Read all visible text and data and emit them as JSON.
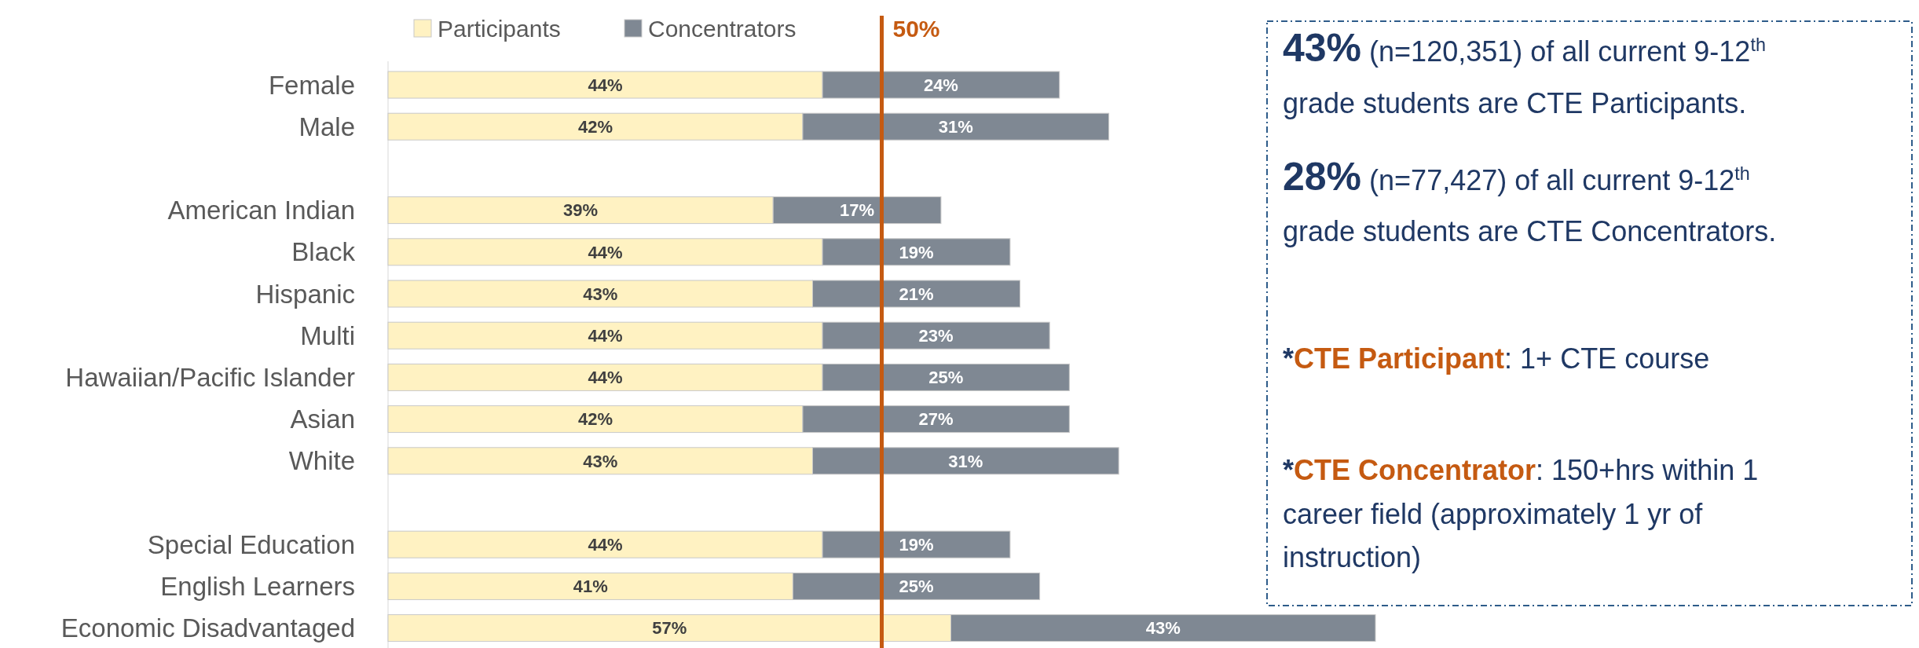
{
  "chart_data": [
    {
      "type": "bar",
      "orientation": "horizontal",
      "stacked": true,
      "legend": "top",
      "categories": [
        "Female",
        "Male",
        null,
        "American Indian",
        "Black",
        "Hispanic",
        "Multi",
        "Hawaiian/Pacific Islander",
        "Asian",
        "White",
        null,
        "Special Education",
        "English Learners",
        "Economic Disadvantaged"
      ],
      "series": [
        {
          "name": "Participants",
          "color": "#fff2c2",
          "values": [
            44,
            42,
            null,
            39,
            44,
            43,
            44,
            44,
            42,
            43,
            null,
            44,
            41,
            57
          ],
          "value_labels": [
            "44%",
            "42%",
            null,
            "39%",
            "44%",
            "43%",
            "44%",
            "44%",
            "42%",
            "43%",
            null,
            "44%",
            "41%",
            "57%"
          ]
        },
        {
          "name": "Concentrators",
          "color": "#7f8893",
          "values": [
            24,
            31,
            null,
            17,
            19,
            21,
            23,
            25,
            27,
            31,
            null,
            19,
            25,
            43
          ],
          "value_labels": [
            "24%",
            "31%",
            null,
            "17%",
            "19%",
            "21%",
            "23%",
            "25%",
            "27%",
            "31%",
            null,
            "19%",
            "25%",
            "43%"
          ]
        }
      ],
      "ref_lines": [
        {
          "axis": "x",
          "value": 50,
          "label": "50%",
          "color": "#c55a11"
        }
      ]
    },
    {
      "type": "other",
      "annotations": [
        "43% (n=120,351) of all current 9-12$^{th}$",
        "grade students are CTE Participants.",
        "28% (n=77,427) of all current 9-12$^{th}$",
        "grade students are CTE Concentrators.",
        "*CTE Participant: 1+ CTE course",
        "*CTE Concentrator: 150+hrs within 1",
        "career field (approximately 1 yr of",
        "instruction)"
      ]
    }
  ]
}
